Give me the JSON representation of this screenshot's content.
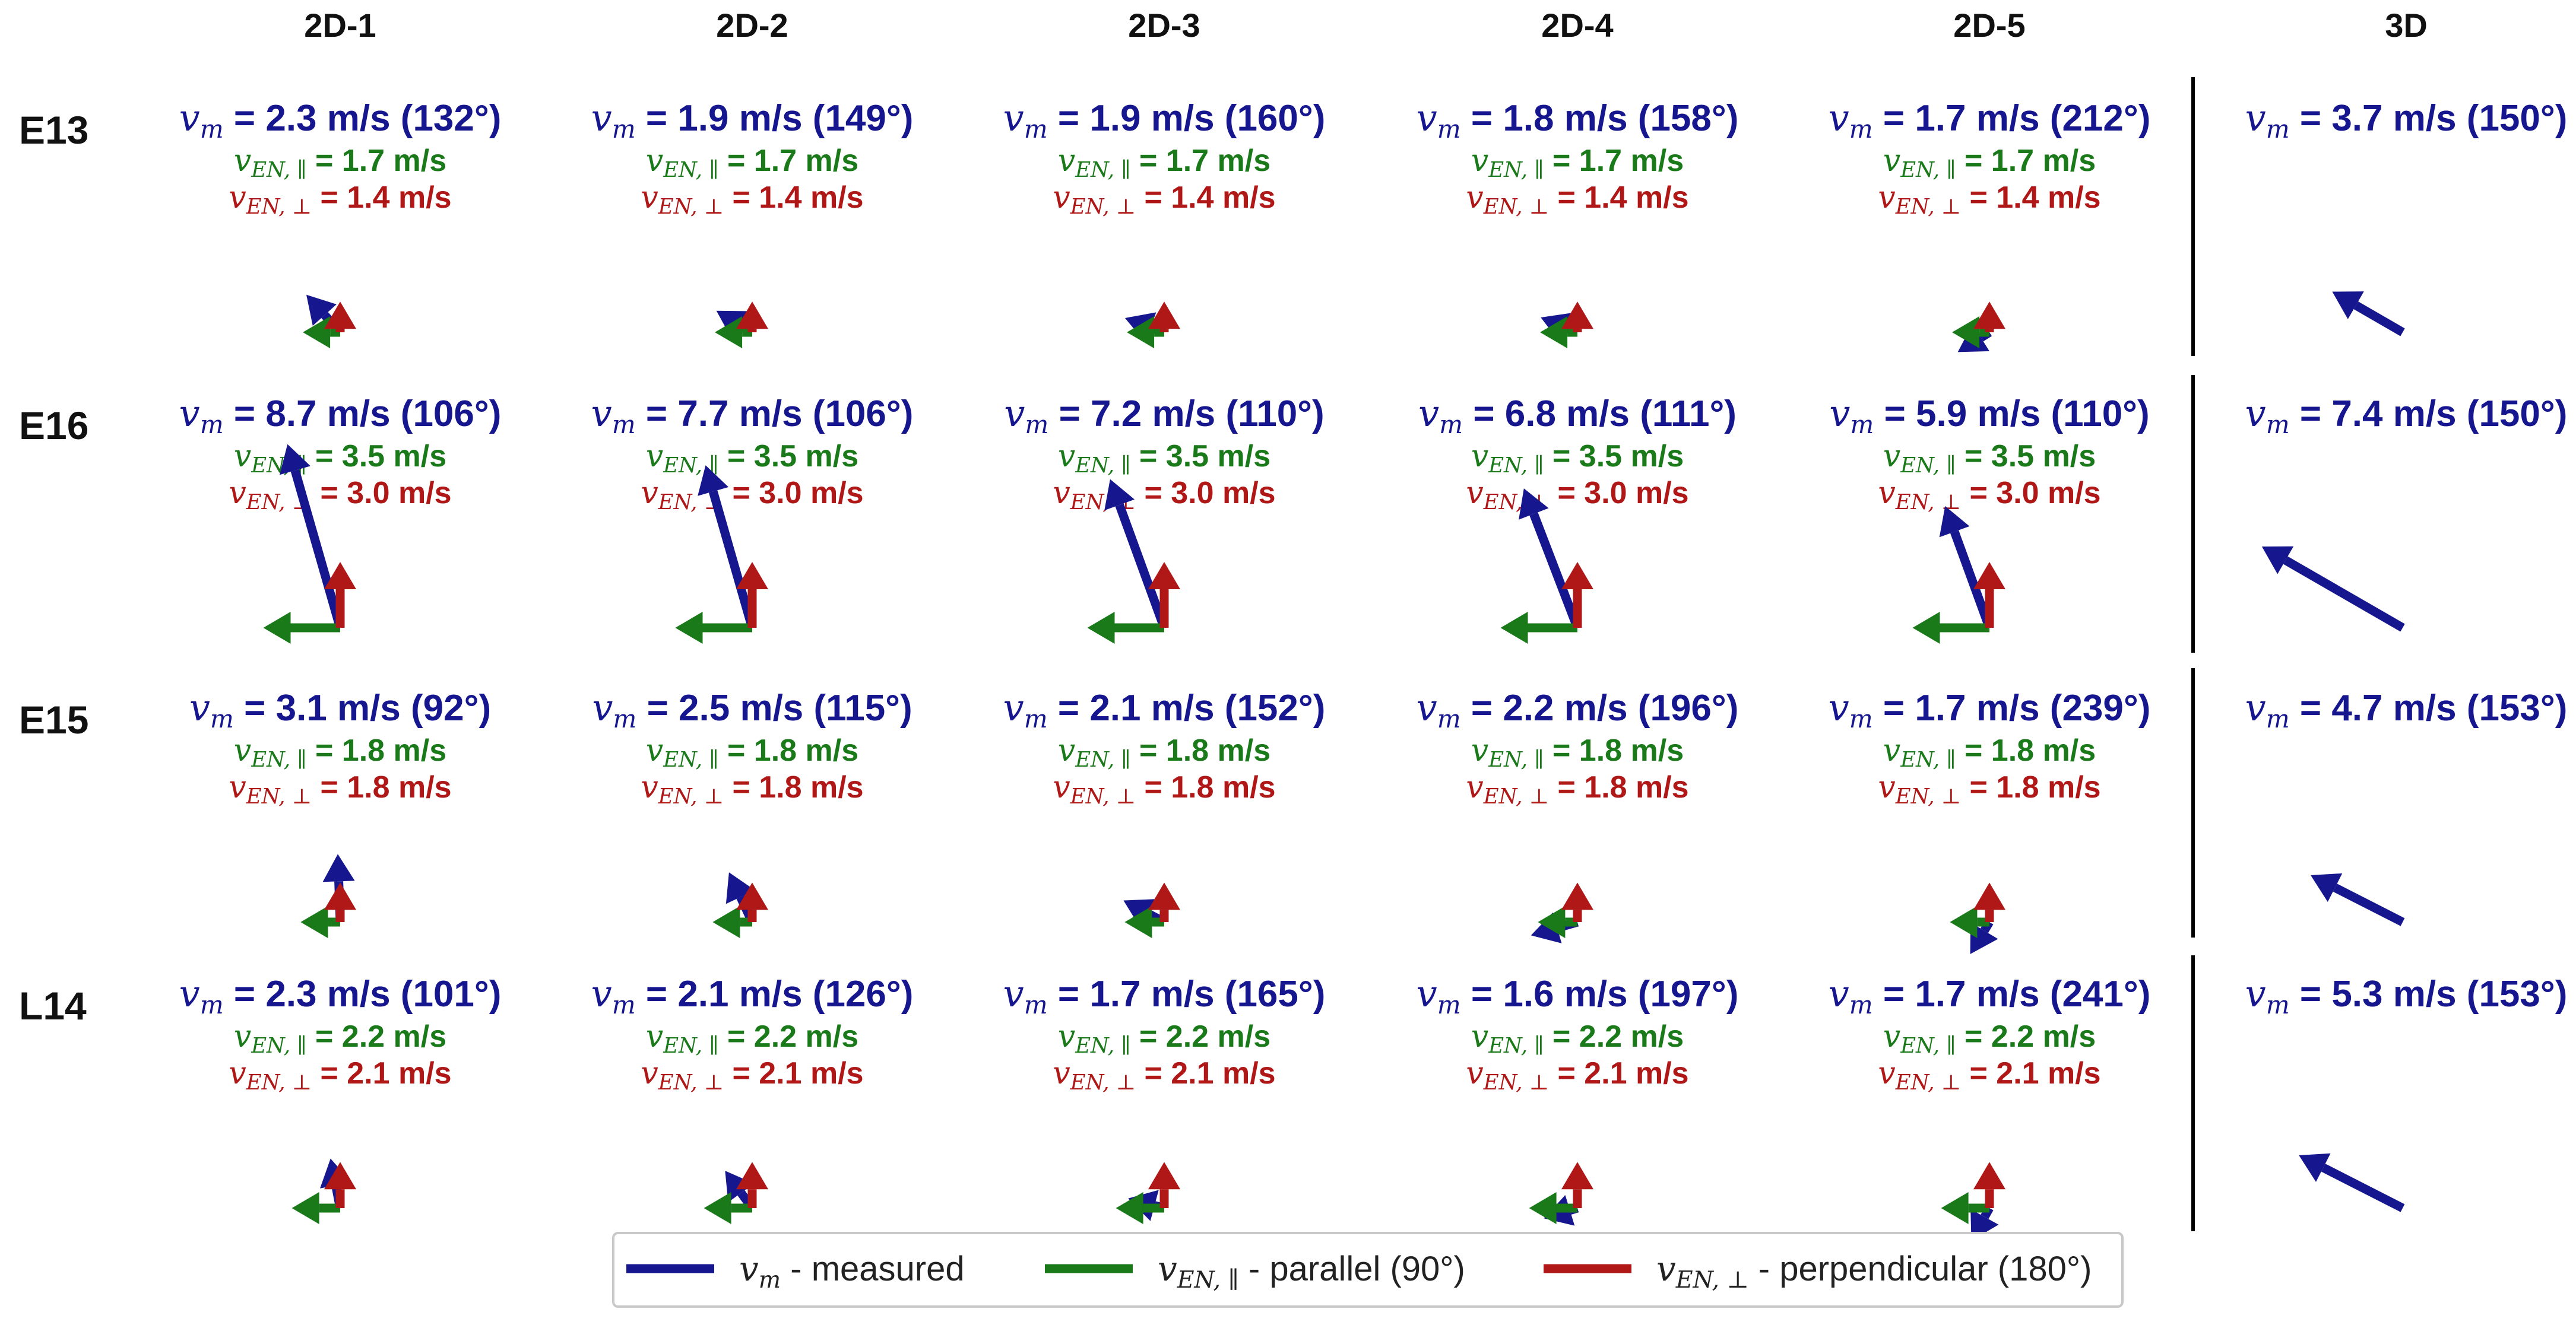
{
  "column_headers": [
    "2D-1",
    "2D-2",
    "2D-3",
    "2D-4",
    "2D-5",
    "3D"
  ],
  "symbols": {
    "v": "v",
    "m_sub": "m",
    "par_sub": "EN, ∥",
    "perp_sub": "EN, ⊥"
  },
  "colors": {
    "measured": "#16168f",
    "parallel": "#1a7a1a",
    "perpendicular": "#b01818"
  },
  "rows": [
    {
      "label": "E13",
      "par": "= 1.7 m/s",
      "perp": "= 1.4 m/s",
      "par_deg": 90,
      "perp_deg": 180,
      "cells": [
        {
          "vm": "= 2.3 m/s (132°)",
          "speed": 2.3,
          "angle": 132
        },
        {
          "vm": "= 1.9 m/s (149°)",
          "speed": 1.9,
          "angle": 149
        },
        {
          "vm": "= 1.9 m/s (160°)",
          "speed": 1.9,
          "angle": 160
        },
        {
          "vm": "= 1.8 m/s (158°)",
          "speed": 1.8,
          "angle": 158
        },
        {
          "vm": "= 1.7 m/s (212°)",
          "speed": 1.7,
          "angle": 212
        }
      ],
      "three_d": {
        "vm": "= 3.7 m/s (150°)",
        "speed": 3.7,
        "angle": 150
      }
    },
    {
      "label": "E16",
      "par": "= 3.5 m/s",
      "perp": "= 3.0 m/s",
      "par_deg": 90,
      "perp_deg": 180,
      "cells": [
        {
          "vm": "= 8.7 m/s (106°)",
          "speed": 8.7,
          "angle": 106
        },
        {
          "vm": "= 7.7 m/s (106°)",
          "speed": 7.7,
          "angle": 106
        },
        {
          "vm": "= 7.2 m/s (110°)",
          "speed": 7.2,
          "angle": 110
        },
        {
          "vm": "= 6.8 m/s (111°)",
          "speed": 6.8,
          "angle": 111
        },
        {
          "vm": "= 5.9 m/s (110°)",
          "speed": 5.9,
          "angle": 110
        }
      ],
      "three_d": {
        "vm": "= 7.4 m/s (150°)",
        "speed": 7.4,
        "angle": 150
      }
    },
    {
      "label": "E15",
      "par": "= 1.8 m/s",
      "perp": "= 1.8 m/s",
      "par_deg": 90,
      "perp_deg": 180,
      "cells": [
        {
          "vm": "= 3.1 m/s (92°)",
          "speed": 3.1,
          "angle": 92
        },
        {
          "vm": "= 2.5 m/s (115°)",
          "speed": 2.5,
          "angle": 115
        },
        {
          "vm": "= 2.1 m/s (152°)",
          "speed": 2.1,
          "angle": 152
        },
        {
          "vm": "= 2.2 m/s (196°)",
          "speed": 2.2,
          "angle": 196
        },
        {
          "vm": "= 1.7 m/s (239°)",
          "speed": 1.7,
          "angle": 239
        }
      ],
      "three_d": {
        "vm": "= 4.7 m/s (153°)",
        "speed": 4.7,
        "angle": 153
      }
    },
    {
      "label": "L14",
      "par": "= 2.2 m/s",
      "perp": "= 2.1 m/s",
      "par_deg": 90,
      "perp_deg": 180,
      "cells": [
        {
          "vm": "= 2.3 m/s (101°)",
          "speed": 2.3,
          "angle": 101
        },
        {
          "vm": "= 2.1 m/s (126°)",
          "speed": 2.1,
          "angle": 126
        },
        {
          "vm": "= 1.7 m/s (165°)",
          "speed": 1.7,
          "angle": 165
        },
        {
          "vm": "= 1.6 m/s (197°)",
          "speed": 1.6,
          "angle": 197
        },
        {
          "vm": "= 1.7 m/s (241°)",
          "speed": 1.7,
          "angle": 241
        }
      ],
      "three_d": {
        "vm": "= 5.3 m/s (153°)",
        "speed": 5.3,
        "angle": 153
      }
    }
  ],
  "legend": [
    {
      "key": "measured",
      "sub": "m",
      "text": " - measured"
    },
    {
      "key": "parallel",
      "sub": "EN, ∥",
      "text": " - parallel (90°)"
    },
    {
      "key": "perpendicular",
      "sub": "EN, ⊥",
      "text": " - perpendicular (180°)"
    }
  ]
}
